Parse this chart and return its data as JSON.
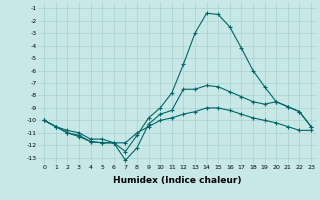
{
  "xlabel": "Humidex (Indice chaleur)",
  "background_color": "#c8e8e8",
  "grid_color": "#a8d0d0",
  "line_color": "#006666",
  "x_values": [
    0,
    1,
    2,
    3,
    4,
    5,
    6,
    7,
    8,
    9,
    10,
    11,
    12,
    13,
    14,
    15,
    16,
    17,
    18,
    19,
    20,
    21,
    22,
    23
  ],
  "line1_y": [
    -10.0,
    -10.5,
    -11.0,
    -11.3,
    -11.7,
    -11.8,
    -11.8,
    -13.2,
    -12.2,
    -10.3,
    -9.5,
    -9.2,
    -7.5,
    -7.5,
    -7.2,
    -7.3,
    -7.7,
    -8.1,
    -8.5,
    -8.7,
    -8.5,
    -8.9,
    -9.3,
    -10.5
  ],
  "line2_y": [
    -10.0,
    -10.5,
    -11.0,
    -11.2,
    -11.7,
    -11.8,
    -11.8,
    -12.5,
    -11.2,
    -9.8,
    -9.0,
    -7.8,
    -5.5,
    -3.0,
    -1.4,
    -1.5,
    -2.5,
    -4.2,
    -6.0,
    -7.3,
    -8.5,
    -8.9,
    -9.3,
    -10.5
  ],
  "line3_y": [
    -10.0,
    -10.5,
    -10.8,
    -11.0,
    -11.5,
    -11.5,
    -11.8,
    -11.8,
    -11.0,
    -10.5,
    -10.0,
    -9.8,
    -9.5,
    -9.3,
    -9.0,
    -9.0,
    -9.2,
    -9.5,
    -9.8,
    -10.0,
    -10.2,
    -10.5,
    -10.8,
    -10.8
  ],
  "ylim": [
    -13.5,
    -0.5
  ],
  "xlim": [
    -0.5,
    23.5
  ],
  "yticks": [
    -1,
    -2,
    -3,
    -4,
    -5,
    -6,
    -7,
    -8,
    -9,
    -10,
    -11,
    -12,
    -13
  ],
  "xticks": [
    0,
    1,
    2,
    3,
    4,
    5,
    6,
    7,
    8,
    9,
    10,
    11,
    12,
    13,
    14,
    15,
    16,
    17,
    18,
    19,
    20,
    21,
    22,
    23
  ],
  "marker": "+"
}
